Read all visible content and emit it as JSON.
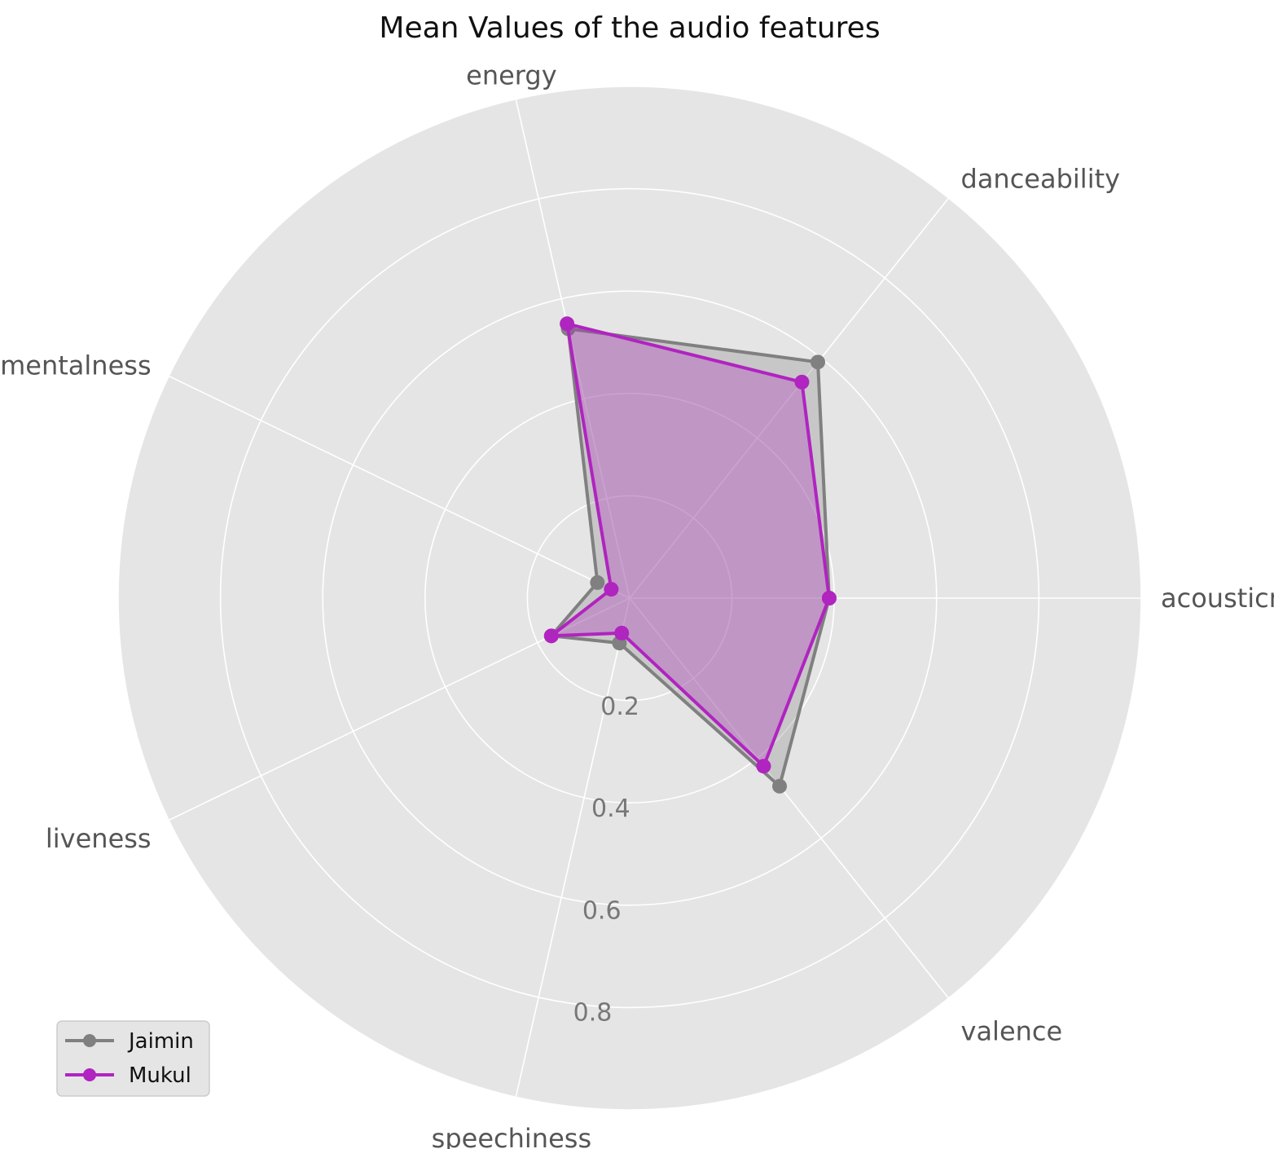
{
  "chart_data": {
    "type": "radar",
    "title": "Mean Values of the audio features",
    "axes": [
      "acousticness",
      "danceability",
      "energy",
      "instrumentalness",
      "liveness",
      "speechiness",
      "valence"
    ],
    "rlim": [
      0,
      1.0
    ],
    "ticks": [
      0.2,
      0.4,
      0.6,
      0.8
    ],
    "tick_labels": [
      "0.2",
      "0.4",
      "0.6",
      "0.8"
    ],
    "grid": true,
    "legend_position": "lower-left",
    "series": [
      {
        "name": "Jaimin",
        "color": "#808080",
        "values": [
          0.39,
          0.59,
          0.54,
          0.07,
          0.17,
          0.09,
          0.47
        ]
      },
      {
        "name": "Mukul",
        "color": "#b024c0",
        "values": [
          0.39,
          0.54,
          0.55,
          0.04,
          0.17,
          0.07,
          0.42
        ]
      }
    ]
  }
}
